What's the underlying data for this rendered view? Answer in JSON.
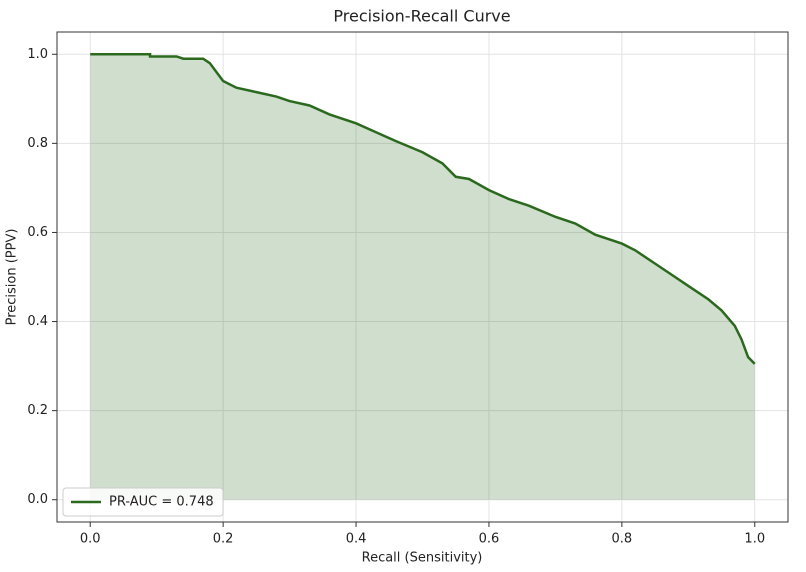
{
  "chart_data": {
    "type": "line",
    "title": "Precision-Recall Curve",
    "x_label": "Recall (Sensitivity)",
    "y_label": "Precision (PPV)",
    "x": [
      0,
      0.09,
      0.09,
      0.13,
      0.14,
      0.17,
      0.18,
      0.19,
      0.2,
      0.22,
      0.25,
      0.28,
      0.3,
      0.33,
      0.36,
      0.4,
      0.43,
      0.46,
      0.5,
      0.53,
      0.55,
      0.57,
      0.6,
      0.63,
      0.66,
      0.7,
      0.73,
      0.76,
      0.8,
      0.82,
      0.85,
      0.88,
      0.9,
      0.93,
      0.95,
      0.97,
      0.98,
      0.99,
      1.0
    ],
    "series": [
      {
        "name": "PR-AUC = 0.748",
        "color": "#2b6a1e",
        "fill": true,
        "values": [
          1.0,
          1.0,
          0.995,
          0.995,
          0.99,
          0.99,
          0.98,
          0.96,
          0.94,
          0.925,
          0.915,
          0.905,
          0.895,
          0.885,
          0.865,
          0.845,
          0.825,
          0.805,
          0.78,
          0.755,
          0.725,
          0.72,
          0.695,
          0.675,
          0.66,
          0.635,
          0.62,
          0.595,
          0.575,
          0.56,
          0.53,
          0.5,
          0.48,
          0.45,
          0.425,
          0.39,
          0.36,
          0.32,
          0.305
        ]
      }
    ],
    "xlim": [
      -0.05,
      1.05
    ],
    "ylim": [
      -0.05,
      1.05
    ],
    "xticks": [
      {
        "value": 0,
        "label": "0.0"
      },
      0.2,
      0.4,
      0.6,
      0.8,
      {
        "value": 1,
        "label": "1.0"
      }
    ],
    "yticks": [
      {
        "value": 0,
        "label": "0.0"
      },
      0.2,
      0.4,
      0.6,
      0.8,
      {
        "value": 1,
        "label": "1.0"
      }
    ],
    "grid": true,
    "legend": "lower left"
  }
}
